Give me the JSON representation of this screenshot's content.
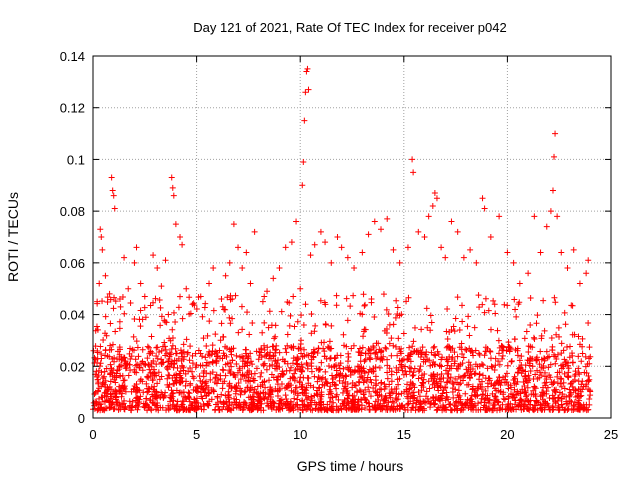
{
  "chart_data": {
    "type": "scatter",
    "title": "Day 121 of 2021, Rate Of TEC Index for receiver p042",
    "xlabel": "GPS time / hours",
    "ylabel": "ROTI / TECUs",
    "xlim": [
      0,
      25
    ],
    "ylim": [
      0,
      0.14
    ],
    "x_ticks": [
      0,
      5,
      10,
      15,
      20,
      25
    ],
    "y_ticks": [
      0,
      0.02,
      0.04,
      0.06,
      0.08,
      0.1,
      0.12,
      0.14
    ],
    "x_tick_labels": [
      "0",
      "5",
      "10",
      "15",
      "20",
      "25"
    ],
    "y_tick_labels": [
      "0",
      "0.02",
      "0.04",
      "0.06",
      "0.08",
      "0.1",
      "0.12",
      "0.14"
    ],
    "grid": true,
    "marker": "+",
    "color": "#ff0000",
    "background_band": {
      "x_range": [
        0,
        24
      ],
      "baseline_range": [
        0.003,
        0.028
      ],
      "description": "dense cluster of points between 0 and 24 h"
    },
    "series": [
      {
        "name": "p042",
        "points": [
          [
            0.2,
            0.045
          ],
          [
            0.3,
            0.052
          ],
          [
            0.35,
            0.073
          ],
          [
            0.4,
            0.07
          ],
          [
            0.45,
            0.065
          ],
          [
            0.6,
            0.055
          ],
          [
            0.8,
            0.048
          ],
          [
            0.9,
            0.093
          ],
          [
            0.95,
            0.088
          ],
          [
            1.0,
            0.086
          ],
          [
            1.05,
            0.081
          ],
          [
            1.3,
            0.046
          ],
          [
            1.5,
            0.062
          ],
          [
            1.7,
            0.05
          ],
          [
            2.0,
            0.06
          ],
          [
            2.1,
            0.066
          ],
          [
            2.3,
            0.052
          ],
          [
            2.5,
            0.047
          ],
          [
            2.9,
            0.063
          ],
          [
            3.1,
            0.058
          ],
          [
            3.3,
            0.051
          ],
          [
            3.5,
            0.061
          ],
          [
            3.8,
            0.093
          ],
          [
            3.85,
            0.089
          ],
          [
            3.9,
            0.086
          ],
          [
            4.0,
            0.075
          ],
          [
            4.2,
            0.07
          ],
          [
            4.3,
            0.067
          ],
          [
            4.5,
            0.05
          ],
          [
            4.8,
            0.044
          ],
          [
            5.2,
            0.047
          ],
          [
            5.6,
            0.052
          ],
          [
            5.8,
            0.058
          ],
          [
            6.2,
            0.046
          ],
          [
            6.4,
            0.055
          ],
          [
            6.6,
            0.06
          ],
          [
            6.8,
            0.075
          ],
          [
            7.0,
            0.066
          ],
          [
            7.2,
            0.058
          ],
          [
            7.4,
            0.064
          ],
          [
            7.6,
            0.052
          ],
          [
            7.8,
            0.072
          ],
          [
            8.2,
            0.045
          ],
          [
            8.4,
            0.049
          ],
          [
            8.7,
            0.054
          ],
          [
            9.0,
            0.058
          ],
          [
            9.3,
            0.066
          ],
          [
            9.6,
            0.068
          ],
          [
            9.8,
            0.076
          ],
          [
            10.0,
            0.05
          ],
          [
            10.1,
            0.09
          ],
          [
            10.15,
            0.099
          ],
          [
            10.2,
            0.115
          ],
          [
            10.25,
            0.126
          ],
          [
            10.3,
            0.134
          ],
          [
            10.35,
            0.135
          ],
          [
            10.4,
            0.127
          ],
          [
            10.5,
            0.063
          ],
          [
            10.7,
            0.067
          ],
          [
            11.0,
            0.072
          ],
          [
            11.2,
            0.068
          ],
          [
            11.5,
            0.06
          ],
          [
            11.8,
            0.07
          ],
          [
            12.0,
            0.066
          ],
          [
            12.3,
            0.062
          ],
          [
            12.6,
            0.058
          ],
          [
            13.0,
            0.064
          ],
          [
            13.3,
            0.071
          ],
          [
            13.6,
            0.076
          ],
          [
            13.9,
            0.073
          ],
          [
            14.2,
            0.077
          ],
          [
            14.5,
            0.065
          ],
          [
            14.8,
            0.06
          ],
          [
            15.2,
            0.066
          ],
          [
            15.4,
            0.1
          ],
          [
            15.45,
            0.095
          ],
          [
            15.7,
            0.072
          ],
          [
            16.0,
            0.07
          ],
          [
            16.2,
            0.078
          ],
          [
            16.4,
            0.082
          ],
          [
            16.5,
            0.087
          ],
          [
            16.6,
            0.085
          ],
          [
            16.8,
            0.066
          ],
          [
            17.0,
            0.062
          ],
          [
            17.3,
            0.076
          ],
          [
            17.6,
            0.072
          ],
          [
            17.9,
            0.062
          ],
          [
            18.2,
            0.065
          ],
          [
            18.5,
            0.06
          ],
          [
            18.8,
            0.085
          ],
          [
            18.9,
            0.081
          ],
          [
            19.2,
            0.07
          ],
          [
            19.6,
            0.078
          ],
          [
            20.0,
            0.064
          ],
          [
            20.3,
            0.06
          ],
          [
            20.6,
            0.052
          ],
          [
            21.0,
            0.056
          ],
          [
            21.3,
            0.078
          ],
          [
            21.6,
            0.064
          ],
          [
            21.9,
            0.074
          ],
          [
            22.1,
            0.08
          ],
          [
            22.2,
            0.088
          ],
          [
            22.25,
            0.101
          ],
          [
            22.3,
            0.11
          ],
          [
            22.4,
            0.078
          ],
          [
            22.6,
            0.064
          ],
          [
            22.9,
            0.058
          ],
          [
            23.2,
            0.065
          ],
          [
            23.5,
            0.052
          ],
          [
            23.8,
            0.056
          ],
          [
            23.9,
            0.061
          ]
        ]
      }
    ]
  }
}
